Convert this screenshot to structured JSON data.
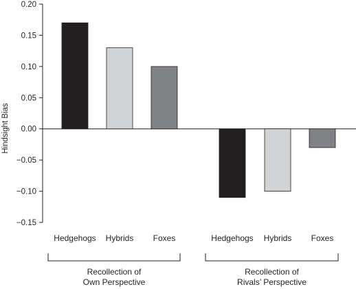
{
  "chart_data": {
    "type": "bar",
    "ylabel": "Hindsight Bias",
    "ylim": [
      -0.15,
      0.2
    ],
    "yticks": [
      "0.20",
      "0.15",
      "0.10",
      "0.05",
      "0.00",
      "−0.05",
      "−0.10",
      "−0.15"
    ],
    "ytick_values": [
      0.2,
      0.15,
      0.1,
      0.05,
      0.0,
      -0.05,
      -0.1,
      -0.15
    ],
    "grid": false,
    "groups": [
      {
        "label_line1": "Recollection of",
        "label_line2": "Own Perspective",
        "categories": [
          "Hedgehogs",
          "Hybrids",
          "Foxes"
        ],
        "values": [
          0.17,
          0.13,
          0.1
        ]
      },
      {
        "label_line1": "Recollection of",
        "label_line2": "Rivals’ Perspective",
        "categories": [
          "Hedgehogs",
          "Hybrids",
          "Foxes"
        ],
        "values": [
          -0.11,
          -0.1,
          -0.03
        ]
      }
    ],
    "colors": [
      "#231f20",
      "#d1d3d4",
      "#808285"
    ]
  }
}
